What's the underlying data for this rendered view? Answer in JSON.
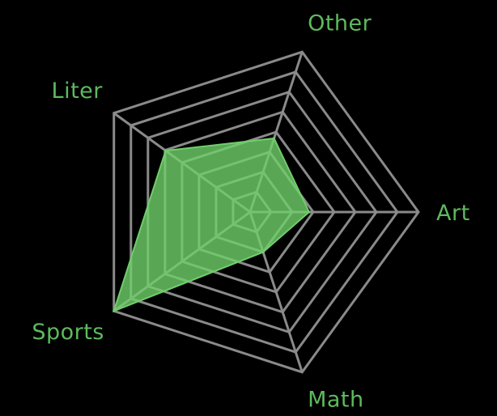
{
  "chart_data": {
    "type": "radar",
    "categories": [
      "Art",
      "Math",
      "Sports",
      "Liter",
      "Other"
    ],
    "values": [
      0.35,
      0.25,
      1.0,
      0.62,
      0.46
    ],
    "rlim": [
      0,
      1
    ],
    "grid_levels": 8,
    "title": "",
    "legend": "none"
  },
  "colors": {
    "background": "#000000",
    "grid": "#8a8a8a",
    "fill": "#6fcf6a",
    "fill_opacity": 0.8,
    "label": "#5dba5d"
  }
}
